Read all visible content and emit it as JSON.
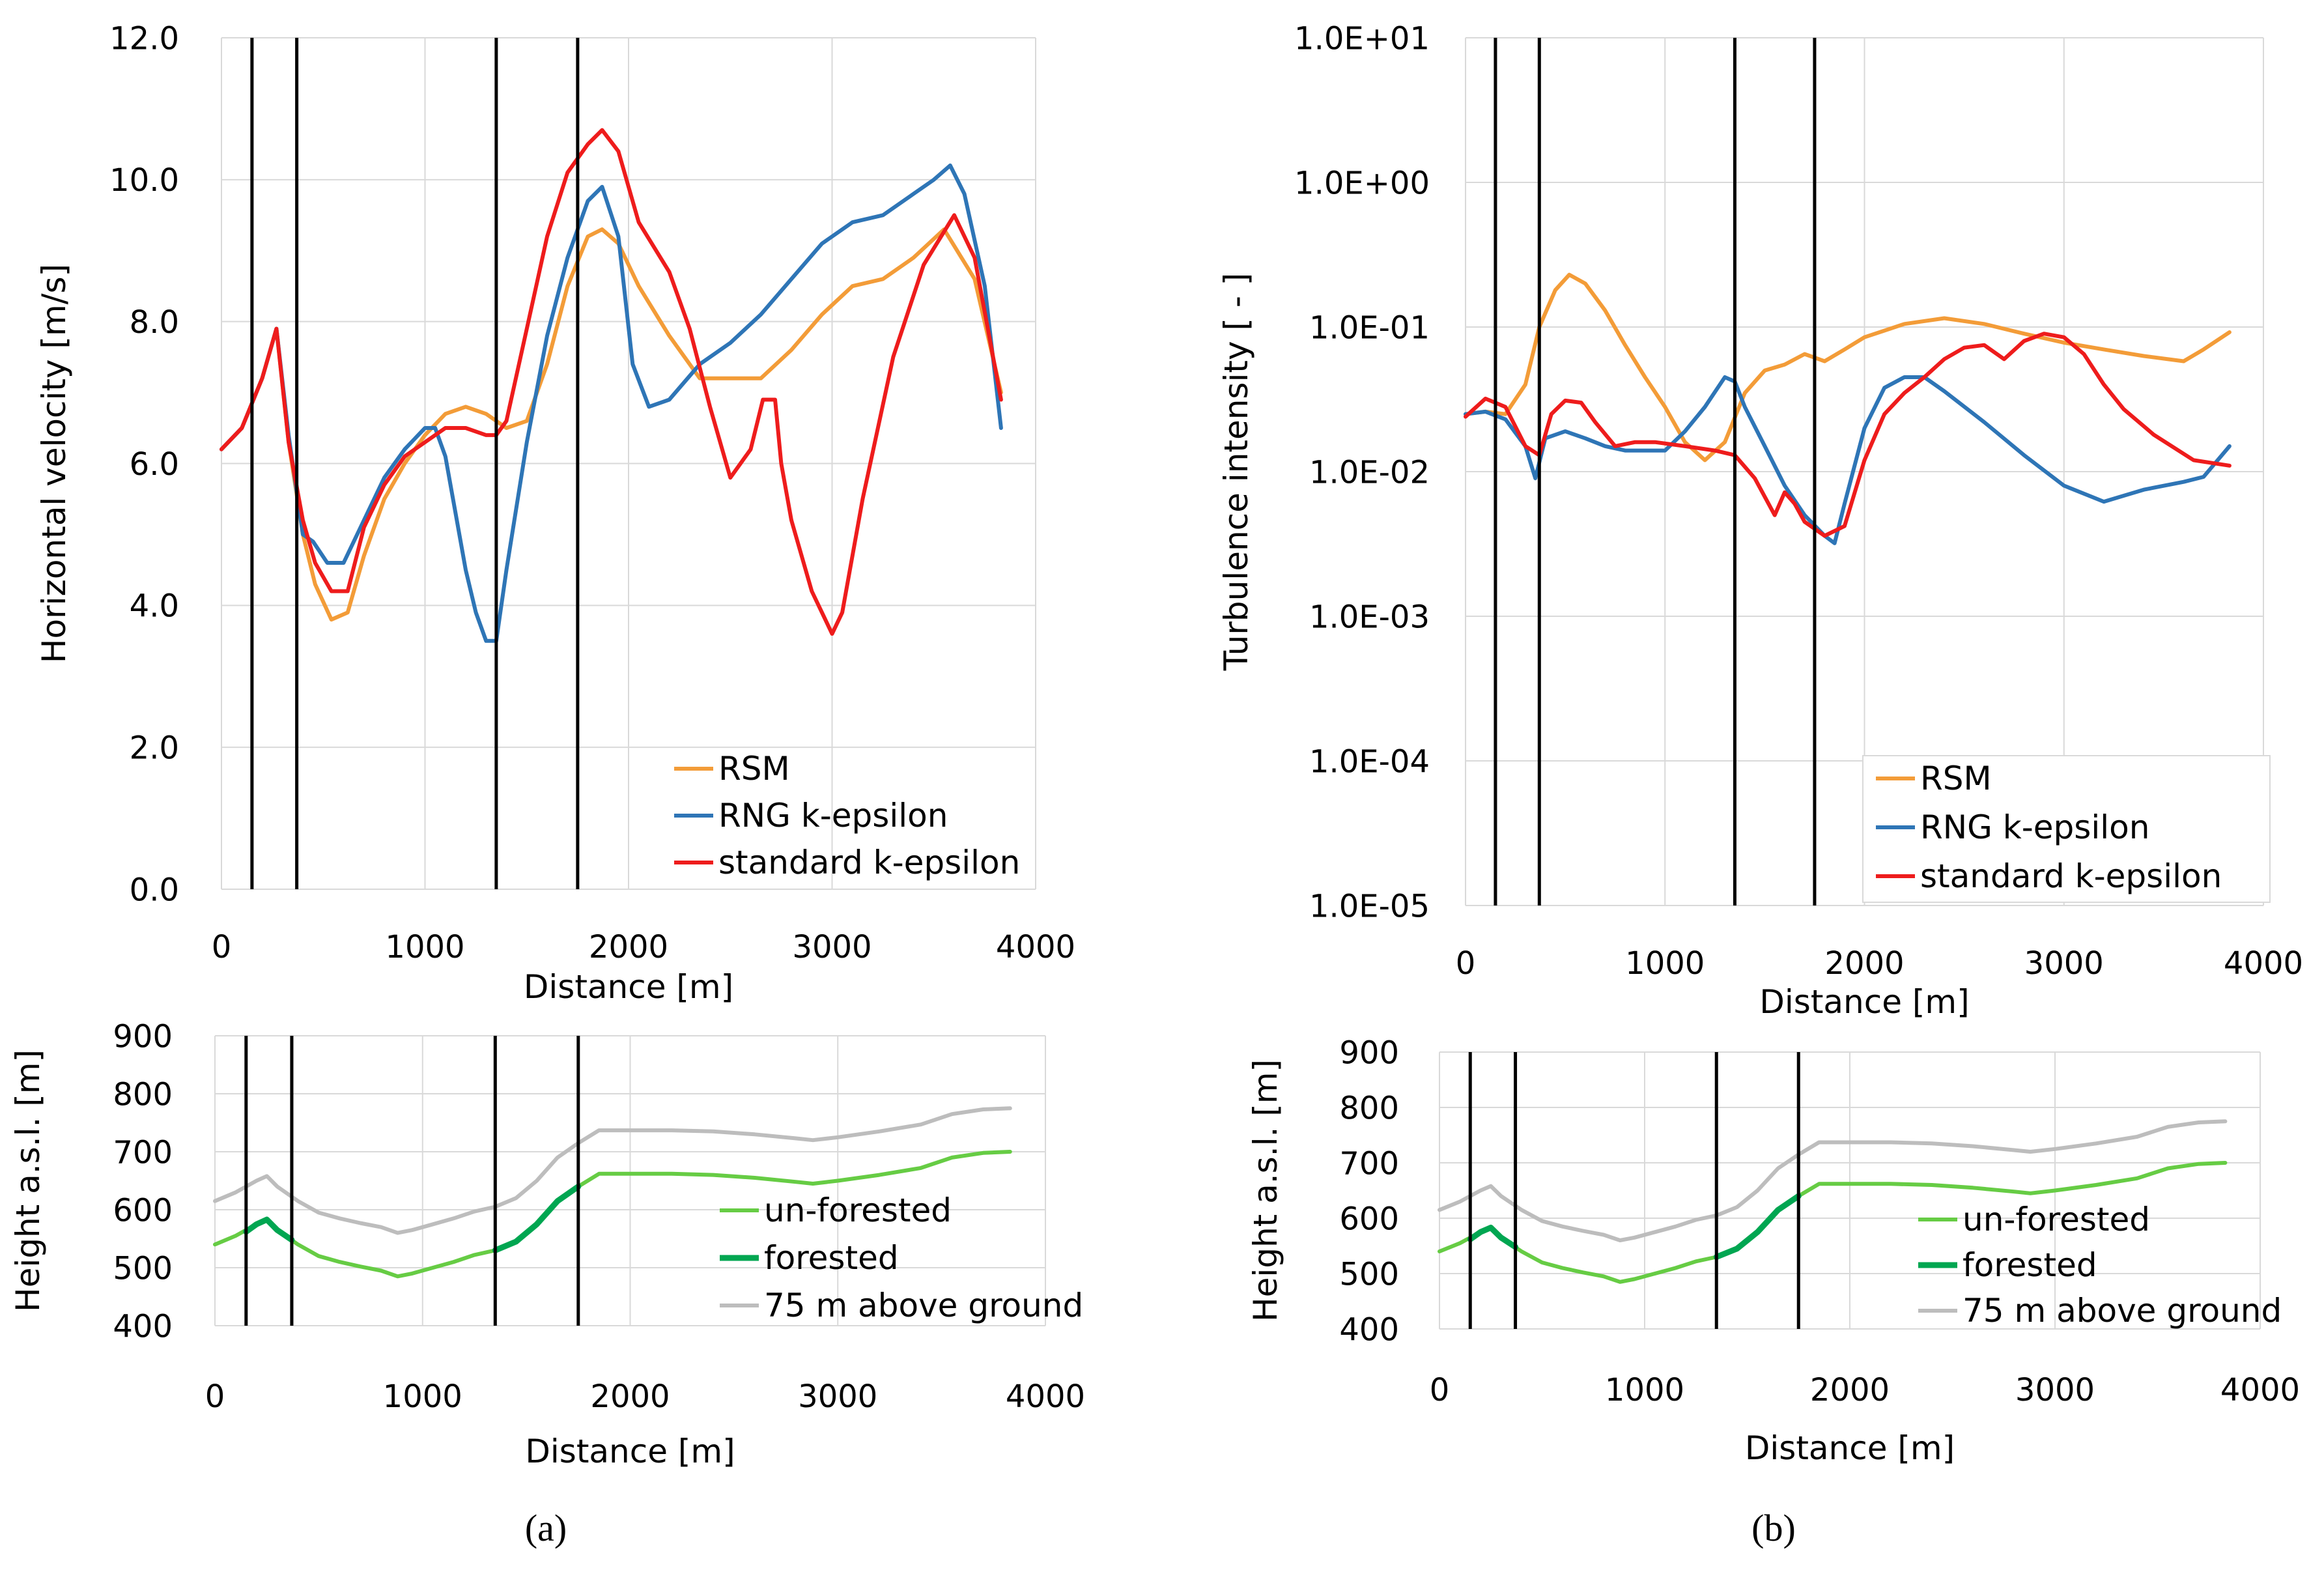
{
  "figure_labels": {
    "a": "(a)",
    "b": "(b)"
  },
  "colors": {
    "rsm": "#f39c38",
    "rng": "#2e75b6",
    "standard": "#ee1c1c",
    "unforested": "#66cc44",
    "forested": "#00a651",
    "above_ground": "#bdbdbd",
    "grid": "#d9d9d9",
    "marker": "#000000"
  },
  "chart_data": [
    {
      "id": "a_top",
      "type": "line",
      "xlabel": "Distance [m]",
      "ylabel": "Horizontal velocity [m/s]",
      "xlim": [
        0,
        4000
      ],
      "ylim": [
        0,
        12
      ],
      "xticks": [
        "0",
        "1000",
        "2000",
        "3000",
        "4000"
      ],
      "yticks": [
        "0.0",
        "2.0",
        "4.0",
        "6.0",
        "8.0",
        "10.0",
        "12.0"
      ],
      "grid": true,
      "legend_position": "bottom-right",
      "vertical_markers": [
        150,
        370,
        1350,
        1750
      ],
      "series": [
        {
          "name": "RSM",
          "color_key": "rsm",
          "x": [
            0,
            100,
            200,
            270,
            330,
            400,
            460,
            540,
            620,
            700,
            800,
            900,
            1000,
            1100,
            1200,
            1300,
            1400,
            1500,
            1600,
            1700,
            1800,
            1870,
            1950,
            2050,
            2200,
            2350,
            2500,
            2650,
            2800,
            2950,
            3100,
            3250,
            3400,
            3550,
            3700,
            3830
          ],
          "y": [
            6.2,
            6.5,
            7.2,
            7.9,
            6.3,
            5.0,
            4.3,
            3.8,
            3.9,
            4.7,
            5.5,
            6.0,
            6.4,
            6.7,
            6.8,
            6.7,
            6.5,
            6.6,
            7.4,
            8.5,
            9.2,
            9.3,
            9.1,
            8.5,
            7.8,
            7.2,
            7.2,
            7.2,
            7.6,
            8.1,
            8.5,
            8.6,
            8.9,
            9.3,
            8.6,
            7.0
          ]
        },
        {
          "name": "RNG k-epsilon",
          "color_key": "rng",
          "x": [
            0,
            100,
            200,
            270,
            330,
            400,
            450,
            520,
            600,
            700,
            800,
            900,
            1000,
            1050,
            1100,
            1150,
            1200,
            1250,
            1300,
            1350,
            1400,
            1500,
            1600,
            1700,
            1800,
            1870,
            1950,
            2020,
            2100,
            2200,
            2350,
            2500,
            2650,
            2800,
            2950,
            3100,
            3250,
            3400,
            3500,
            3580,
            3650,
            3750,
            3830
          ],
          "y": [
            6.2,
            6.5,
            7.2,
            7.9,
            6.4,
            5.0,
            4.9,
            4.6,
            4.6,
            5.2,
            5.8,
            6.2,
            6.5,
            6.5,
            6.1,
            5.3,
            4.5,
            3.9,
            3.5,
            3.5,
            4.5,
            6.3,
            7.8,
            8.9,
            9.7,
            9.9,
            9.2,
            7.4,
            6.8,
            6.9,
            7.4,
            7.7,
            8.1,
            8.6,
            9.1,
            9.4,
            9.5,
            9.8,
            10.0,
            10.2,
            9.8,
            8.5,
            6.5
          ]
        },
        {
          "name": "standard k-epsilon",
          "color_key": "standard",
          "x": [
            0,
            100,
            200,
            270,
            330,
            400,
            460,
            540,
            620,
            700,
            800,
            900,
            1000,
            1100,
            1200,
            1300,
            1350,
            1400,
            1500,
            1600,
            1700,
            1800,
            1870,
            1950,
            2050,
            2200,
            2300,
            2400,
            2500,
            2600,
            2660,
            2720,
            2750,
            2800,
            2900,
            3000,
            3050,
            3150,
            3300,
            3450,
            3600,
            3700,
            3830
          ],
          "y": [
            6.2,
            6.5,
            7.2,
            7.9,
            6.3,
            5.2,
            4.6,
            4.2,
            4.2,
            5.1,
            5.7,
            6.1,
            6.3,
            6.5,
            6.5,
            6.4,
            6.4,
            6.6,
            7.9,
            9.2,
            10.1,
            10.5,
            10.7,
            10.4,
            9.4,
            8.7,
            7.9,
            6.8,
            5.8,
            6.2,
            6.9,
            6.9,
            6.0,
            5.2,
            4.2,
            3.6,
            3.9,
            5.5,
            7.5,
            8.8,
            9.5,
            8.9,
            6.9
          ]
        }
      ]
    },
    {
      "id": "b_top",
      "type": "line",
      "xlabel": "Distance [m]",
      "ylabel": "Turbulence intensity [ - ]",
      "xlim": [
        0,
        4000
      ],
      "ylim": [
        1e-05,
        10
      ],
      "yscale": "log",
      "xticks": [
        "0",
        "1000",
        "2000",
        "3000",
        "4000"
      ],
      "yticks": [
        "1.0E-05",
        "1.0E-04",
        "1.0E-03",
        "1.0E-02",
        "1.0E-01",
        "1.0E+00",
        "1.0E+01"
      ],
      "grid": true,
      "legend_position": "bottom-right",
      "vertical_markers": [
        150,
        370,
        1350,
        1750
      ],
      "series": [
        {
          "name": "RSM",
          "color_key": "rsm",
          "x": [
            0,
            100,
            200,
            300,
            370,
            450,
            520,
            600,
            700,
            800,
            900,
            1000,
            1100,
            1200,
            1300,
            1400,
            1500,
            1600,
            1700,
            1800,
            1900,
            2000,
            2200,
            2400,
            2600,
            2800,
            3000,
            3200,
            3400,
            3600,
            3700,
            3830
          ],
          "y": [
            0.025,
            0.026,
            0.025,
            0.04,
            0.1,
            0.18,
            0.23,
            0.2,
            0.13,
            0.075,
            0.045,
            0.028,
            0.016,
            0.012,
            0.016,
            0.035,
            0.05,
            0.055,
            0.065,
            0.058,
            0.07,
            0.085,
            0.105,
            0.115,
            0.105,
            0.09,
            0.078,
            0.07,
            0.063,
            0.058,
            0.07,
            0.092
          ]
        },
        {
          "name": "RNG k-epsilon",
          "color_key": "rng",
          "x": [
            0,
            100,
            200,
            300,
            350,
            400,
            500,
            600,
            700,
            800,
            900,
            1000,
            1100,
            1200,
            1300,
            1350,
            1400,
            1500,
            1600,
            1700,
            1800,
            1850,
            1900,
            2000,
            2100,
            2200,
            2300,
            2400,
            2600,
            2800,
            3000,
            3200,
            3400,
            3600,
            3700,
            3830
          ],
          "y": [
            0.025,
            0.026,
            0.023,
            0.015,
            0.009,
            0.017,
            0.019,
            0.017,
            0.015,
            0.014,
            0.014,
            0.014,
            0.019,
            0.028,
            0.045,
            0.042,
            0.028,
            0.015,
            0.008,
            0.005,
            0.0036,
            0.0032,
            0.006,
            0.02,
            0.038,
            0.045,
            0.045,
            0.036,
            0.022,
            0.013,
            0.008,
            0.0062,
            0.0075,
            0.0085,
            0.0092,
            0.015
          ]
        },
        {
          "name": "standard k-epsilon",
          "color_key": "standard",
          "x": [
            0,
            100,
            200,
            300,
            370,
            430,
            500,
            580,
            650,
            750,
            850,
            950,
            1100,
            1250,
            1350,
            1450,
            1550,
            1600,
            1650,
            1700,
            1800,
            1900,
            2000,
            2100,
            2200,
            2300,
            2400,
            2500,
            2600,
            2700,
            2800,
            2900,
            3000,
            3100,
            3200,
            3300,
            3450,
            3650,
            3830
          ],
          "y": [
            0.024,
            0.032,
            0.028,
            0.015,
            0.013,
            0.025,
            0.031,
            0.03,
            0.022,
            0.015,
            0.016,
            0.016,
            0.015,
            0.014,
            0.013,
            0.009,
            0.005,
            0.0072,
            0.006,
            0.0045,
            0.0036,
            0.0042,
            0.012,
            0.025,
            0.035,
            0.045,
            0.06,
            0.072,
            0.075,
            0.06,
            0.08,
            0.09,
            0.085,
            0.065,
            0.04,
            0.027,
            0.018,
            0.012,
            0.011
          ]
        }
      ]
    },
    {
      "id": "a_bottom",
      "type": "line",
      "xlabel": "Distance [m]",
      "ylabel": "Height a.s.l. [m]",
      "xlim": [
        0,
        4000
      ],
      "ylim": [
        400,
        900
      ],
      "xticks": [
        "0",
        "1000",
        "2000",
        "3000",
        "4000"
      ],
      "yticks": [
        "400",
        "500",
        "600",
        "700",
        "800",
        "900"
      ],
      "grid": true,
      "legend_position": "bottom-right",
      "vertical_markers": [
        150,
        370,
        1350,
        1750
      ],
      "series": [
        {
          "name": "un-forested",
          "color_key": "unforested",
          "x": [
            0,
            100,
            200,
            250,
            300,
            400,
            500,
            600,
            700,
            800,
            880,
            950,
            1050,
            1150,
            1250,
            1350,
            1450,
            1550,
            1650,
            1750,
            1850,
            2000,
            2200,
            2400,
            2600,
            2800,
            2880,
            3000,
            3200,
            3400,
            3550,
            3700,
            3830
          ],
          "y": [
            540,
            555,
            575,
            583,
            565,
            540,
            520,
            510,
            502,
            495,
            485,
            490,
            500,
            510,
            522,
            530,
            545,
            575,
            615,
            640,
            662,
            662,
            662,
            660,
            655,
            648,
            645,
            650,
            660,
            672,
            690,
            698,
            700
          ]
        },
        {
          "name": "forested",
          "color_key": "forested",
          "x": [
            150,
            200,
            250,
            300,
            370
          ],
          "y": [
            562,
            575,
            583,
            565,
            548
          ]
        },
        {
          "name": "forested",
          "color_key": "forested",
          "x": [
            1350,
            1450,
            1550,
            1650,
            1750
          ],
          "y": [
            530,
            545,
            575,
            615,
            640
          ]
        },
        {
          "name": "75 m above ground",
          "color_key": "above_ground",
          "x": [
            0,
            100,
            200,
            250,
            300,
            400,
            500,
            600,
            700,
            800,
            880,
            950,
            1050,
            1150,
            1250,
            1350,
            1450,
            1550,
            1650,
            1750,
            1850,
            2000,
            2200,
            2400,
            2600,
            2800,
            2880,
            3000,
            3200,
            3400,
            3550,
            3700,
            3830
          ],
          "y": [
            615,
            630,
            650,
            658,
            640,
            615,
            595,
            585,
            577,
            570,
            560,
            565,
            575,
            585,
            597,
            605,
            620,
            650,
            690,
            715,
            737,
            737,
            737,
            735,
            730,
            723,
            720,
            725,
            735,
            747,
            765,
            773,
            775
          ]
        }
      ],
      "legend_entries": [
        {
          "name": "un-forested",
          "color_key": "unforested"
        },
        {
          "name": "forested",
          "color_key": "forested"
        },
        {
          "name": "75 m above ground",
          "color_key": "above_ground"
        }
      ]
    },
    {
      "id": "b_bottom",
      "type": "line",
      "xlabel": "Distance [m]",
      "ylabel": "Height a.s.l. [m]",
      "xlim": [
        0,
        4000
      ],
      "ylim": [
        400,
        900
      ],
      "xticks": [
        "0",
        "1000",
        "2000",
        "3000",
        "4000"
      ],
      "yticks": [
        "400",
        "500",
        "600",
        "700",
        "800",
        "900"
      ],
      "grid": true,
      "legend_position": "bottom-right",
      "vertical_markers": [
        150,
        370,
        1350,
        1750
      ],
      "series": [
        {
          "name": "un-forested",
          "color_key": "unforested",
          "x": [
            0,
            100,
            200,
            250,
            300,
            400,
            500,
            600,
            700,
            800,
            880,
            950,
            1050,
            1150,
            1250,
            1350,
            1450,
            1550,
            1650,
            1750,
            1850,
            2000,
            2200,
            2400,
            2600,
            2800,
            2880,
            3000,
            3200,
            3400,
            3550,
            3700,
            3830
          ],
          "y": [
            540,
            555,
            575,
            583,
            565,
            540,
            520,
            510,
            502,
            495,
            485,
            490,
            500,
            510,
            522,
            530,
            545,
            575,
            615,
            640,
            662,
            662,
            662,
            660,
            655,
            648,
            645,
            650,
            660,
            672,
            690,
            698,
            700
          ]
        },
        {
          "name": "forested",
          "color_key": "forested",
          "x": [
            150,
            200,
            250,
            300,
            370
          ],
          "y": [
            562,
            575,
            583,
            565,
            548
          ]
        },
        {
          "name": "forested",
          "color_key": "forested",
          "x": [
            1350,
            1450,
            1550,
            1650,
            1750
          ],
          "y": [
            530,
            545,
            575,
            615,
            640
          ]
        },
        {
          "name": "75 m above ground",
          "color_key": "above_ground",
          "x": [
            0,
            100,
            200,
            250,
            300,
            400,
            500,
            600,
            700,
            800,
            880,
            950,
            1050,
            1150,
            1250,
            1350,
            1450,
            1550,
            1650,
            1750,
            1850,
            2000,
            2200,
            2400,
            2600,
            2800,
            2880,
            3000,
            3200,
            3400,
            3550,
            3700,
            3830
          ],
          "y": [
            615,
            630,
            650,
            658,
            640,
            615,
            595,
            585,
            577,
            570,
            560,
            565,
            575,
            585,
            597,
            605,
            620,
            650,
            690,
            715,
            737,
            737,
            737,
            735,
            730,
            723,
            720,
            725,
            735,
            747,
            765,
            773,
            775
          ]
        }
      ],
      "legend_entries": [
        {
          "name": "un-forested",
          "color_key": "unforested"
        },
        {
          "name": "forested",
          "color_key": "forested"
        },
        {
          "name": "75 m above ground",
          "color_key": "above_ground"
        }
      ]
    }
  ]
}
